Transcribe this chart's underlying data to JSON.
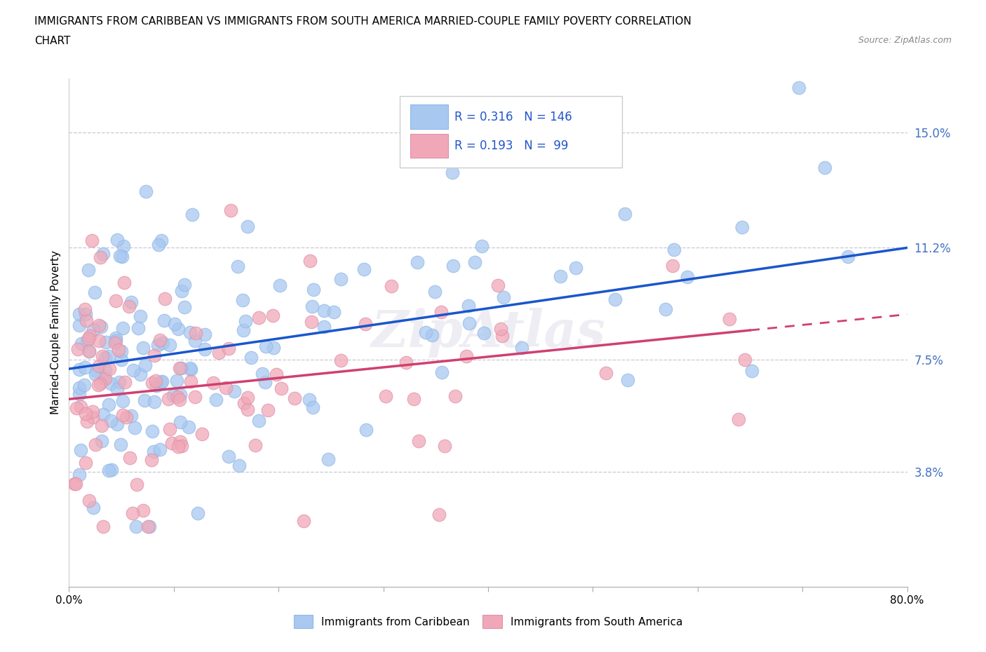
{
  "title_line1": "IMMIGRANTS FROM CARIBBEAN VS IMMIGRANTS FROM SOUTH AMERICA MARRIED-COUPLE FAMILY POVERTY CORRELATION",
  "title_line2": "CHART",
  "source": "Source: ZipAtlas.com",
  "ylabel": "Married-Couple Family Poverty",
  "xlim": [
    0.0,
    0.8
  ],
  "ylim": [
    0.0,
    0.168
  ],
  "yticks": [
    0.038,
    0.075,
    0.112,
    0.15
  ],
  "ytick_labels": [
    "3.8%",
    "7.5%",
    "11.2%",
    "15.0%"
  ],
  "xticks": [
    0.0,
    0.1,
    0.2,
    0.3,
    0.4,
    0.5,
    0.6,
    0.7,
    0.8
  ],
  "xtick_labels": [
    "0.0%",
    "",
    "",
    "",
    "",
    "",
    "",
    "",
    "80.0%"
  ],
  "hlines": [
    0.038,
    0.075,
    0.112,
    0.15
  ],
  "blue_color": "#A8C8F0",
  "pink_color": "#F0A8B8",
  "blue_line_color": "#1A56CC",
  "pink_line_color": "#D04070",
  "series1_label": "Immigrants from Caribbean",
  "series2_label": "Immigrants from South America",
  "blue_R": 0.316,
  "pink_R": 0.193,
  "blue_N": 146,
  "pink_N": 99,
  "watermark": "ZipAtlas",
  "blue_line_x0": 0.0,
  "blue_line_y0": 0.072,
  "blue_line_x1": 0.8,
  "blue_line_y1": 0.112,
  "pink_line_x0": 0.0,
  "pink_line_y0": 0.062,
  "pink_line_x1": 0.8,
  "pink_line_y1": 0.09,
  "pink_line_solid_end": 0.65
}
